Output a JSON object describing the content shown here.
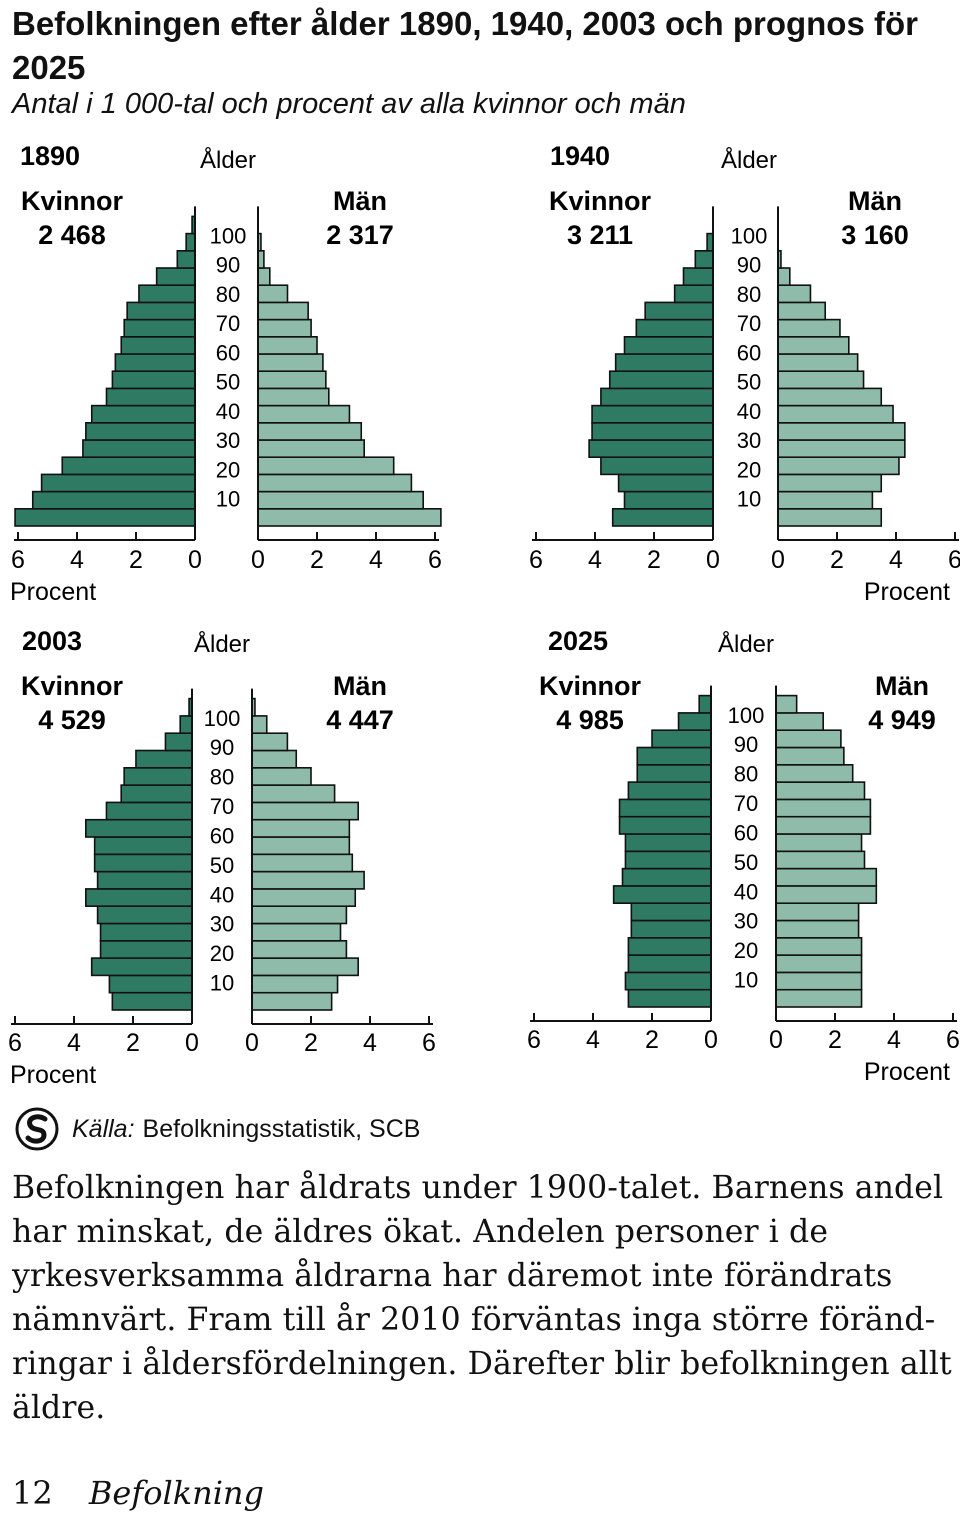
{
  "header": {
    "title": "Befolkningen efter ålder 1890, 1940, 2003 och prognos för 2025",
    "subtitle": "Antal i 1 000-tal och procent av alla kvinnor och män"
  },
  "chart_data": [
    {
      "type": "bar",
      "year": "1890",
      "women_label": "Kvinnor",
      "women_total": "2 468",
      "men_label": "Män",
      "men_total": "2 317",
      "ylabel": "Ålder",
      "xlabel": "Procent",
      "age_ticks": [
        "100",
        "90",
        "80",
        "70",
        "60",
        "50",
        "40",
        "30",
        "20",
        "10"
      ],
      "x_ticks": [
        "6",
        "4",
        "2",
        "0"
      ],
      "xlim": [
        0,
        6.2
      ],
      "women": [
        6.1,
        5.5,
        5.2,
        4.5,
        3.8,
        3.7,
        3.5,
        3.0,
        2.8,
        2.7,
        2.5,
        2.4,
        2.3,
        1.9,
        1.3,
        0.6,
        0.3,
        0.1
      ],
      "men": [
        6.2,
        5.6,
        5.2,
        4.6,
        3.6,
        3.5,
        3.1,
        2.4,
        2.3,
        2.2,
        2.0,
        1.8,
        1.7,
        1.0,
        0.4,
        0.2,
        0.1,
        0.0
      ],
      "colors": {
        "women": "#2e7a62",
        "men": "#8fbbaa"
      }
    },
    {
      "type": "bar",
      "year": "1940",
      "women_label": "Kvinnor",
      "women_total": "3 211",
      "men_label": "Män",
      "men_total": "3 160",
      "ylabel": "Ålder",
      "xlabel": "Procent",
      "age_ticks": [
        "100",
        "90",
        "80",
        "70",
        "60",
        "50",
        "40",
        "30",
        "20",
        "10"
      ],
      "x_ticks": [
        "6",
        "4",
        "2",
        "0"
      ],
      "xlim": [
        0,
        6.2
      ],
      "women": [
        3.4,
        3.0,
        3.2,
        3.8,
        4.2,
        4.1,
        4.1,
        3.8,
        3.5,
        3.3,
        3.0,
        2.6,
        2.3,
        1.3,
        1.0,
        0.6,
        0.2,
        0.0
      ],
      "men": [
        3.5,
        3.2,
        3.5,
        4.1,
        4.3,
        4.3,
        3.9,
        3.5,
        2.9,
        2.7,
        2.4,
        2.1,
        1.6,
        1.1,
        0.4,
        0.1,
        0.0,
        0.0
      ],
      "colors": {
        "women": "#2e7a62",
        "men": "#8fbbaa"
      }
    },
    {
      "type": "bar",
      "year": "2003",
      "women_label": "Kvinnor",
      "women_total": "4 529",
      "men_label": "Män",
      "men_total": "4 447",
      "ylabel": "Ålder",
      "xlabel": "Procent",
      "age_ticks": [
        "100",
        "90",
        "80",
        "70",
        "60",
        "50",
        "40",
        "30",
        "20",
        "10"
      ],
      "x_ticks": [
        "6",
        "4",
        "2",
        "0"
      ],
      "xlim": [
        0,
        6.2
      ],
      "women": [
        2.7,
        2.8,
        3.4,
        3.1,
        3.1,
        3.2,
        3.6,
        3.2,
        3.3,
        3.3,
        3.6,
        2.9,
        2.4,
        2.3,
        1.9,
        0.9,
        0.4,
        0.1
      ],
      "men": [
        2.7,
        2.9,
        3.6,
        3.2,
        3.0,
        3.2,
        3.5,
        3.8,
        3.4,
        3.3,
        3.3,
        3.6,
        2.8,
        2.0,
        1.5,
        1.2,
        0.5,
        0.1
      ],
      "colors": {
        "women": "#2e7a62",
        "men": "#8fbbaa"
      }
    },
    {
      "type": "bar",
      "year": "2025",
      "women_label": "Kvinnor",
      "women_total": "4 985",
      "men_label": "Män",
      "men_total": "4 949",
      "ylabel": "Ålder",
      "xlabel": "Procent",
      "age_ticks": [
        "100",
        "90",
        "80",
        "70",
        "60",
        "50",
        "40",
        "30",
        "20",
        "10"
      ],
      "x_ticks": [
        "6",
        "4",
        "2",
        "0"
      ],
      "xlim": [
        0,
        6.2
      ],
      "women": [
        2.8,
        2.9,
        2.8,
        2.8,
        2.7,
        2.7,
        3.3,
        3.0,
        2.9,
        2.9,
        3.1,
        3.1,
        2.8,
        2.5,
        2.5,
        2.0,
        1.1,
        0.4
      ],
      "men": [
        2.9,
        2.9,
        2.9,
        2.9,
        2.8,
        2.8,
        3.4,
        3.4,
        3.0,
        2.9,
        3.2,
        3.2,
        3.0,
        2.6,
        2.3,
        2.2,
        1.6,
        0.7
      ],
      "colors": {
        "women": "#2e7a62",
        "men": "#8fbbaa"
      }
    }
  ],
  "source": {
    "label": "Källa:",
    "text": "Befolkningsstatistik, SCB"
  },
  "body_text": "Befolkningen har åldrats under 1900-talet. Barnens andel har minskat, de äldres ökat. Andelen personer i de yrkesverksamma åldrarna har däremot inte förändrats nämnvärt. Fram till år 2010 förväntas inga större föränd­ringar i åldersfördelningen. Därefter blir befolkningen allt äldre.",
  "footer": {
    "page_number": "12",
    "section": "Befolkning"
  }
}
